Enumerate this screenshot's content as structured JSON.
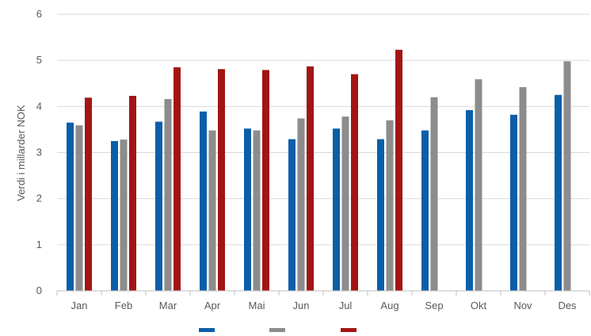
{
  "chart_data": {
    "type": "bar",
    "title": "",
    "xlabel": "",
    "ylabel": "Verdi i millarder NOK",
    "ylim": [
      0,
      6
    ],
    "yticks": [
      "0",
      "1",
      "2",
      "3",
      "4",
      "5",
      "6"
    ],
    "grid": true,
    "legend_position": "bottom",
    "categories": [
      "Jan",
      "Feb",
      "Mar",
      "Apr",
      "Mai",
      "Jun",
      "Jul",
      "Aug",
      "Sep",
      "Okt",
      "Nov",
      "Des"
    ],
    "series": [
      {
        "color": "#0B5EA8",
        "values": [
          3.65,
          3.25,
          3.67,
          3.89,
          3.52,
          3.29,
          3.52,
          3.29,
          3.48,
          3.92,
          3.82,
          4.25
        ]
      },
      {
        "color": "#8C8C8C",
        "values": [
          3.59,
          3.28,
          4.16,
          3.48,
          3.48,
          3.74,
          3.78,
          3.7,
          4.2,
          4.59,
          4.42,
          4.98
        ]
      },
      {
        "color": "#A31515",
        "values": [
          4.19,
          4.23,
          4.85,
          4.81,
          4.79,
          4.87,
          4.7,
          5.23,
          null,
          null,
          null,
          null
        ]
      }
    ]
  }
}
